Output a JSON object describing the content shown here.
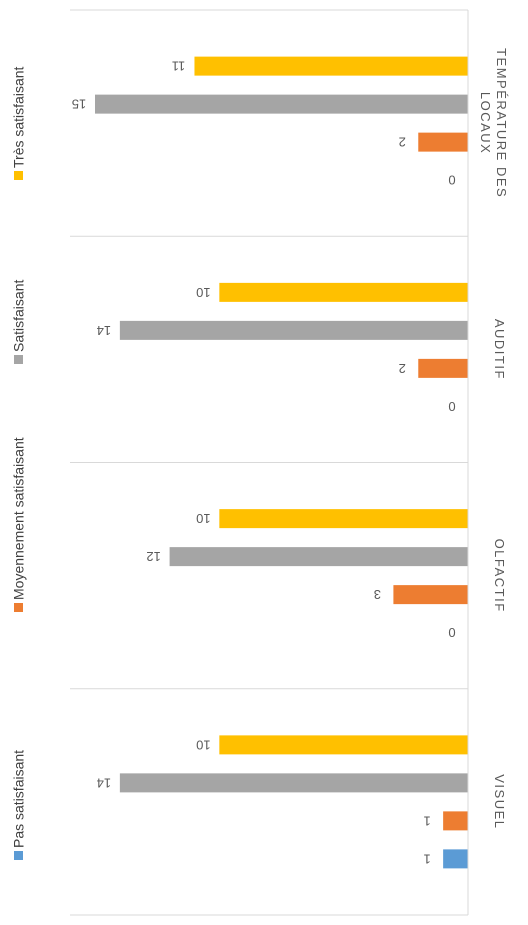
{
  "chart_data": {
    "type": "bar",
    "orientation": "horizontal",
    "rotated": "90deg-clockwise",
    "categories": [
      "VISUEL",
      "OLFACTIF",
      "AUDITIF",
      "TEMPÉRATURE DES LOCAUX"
    ],
    "series": [
      {
        "name": "Pas satisfaisant",
        "color": "#5B9BD5",
        "values": [
          1,
          0,
          0,
          0
        ]
      },
      {
        "name": "Moyennement satisfaisant",
        "color": "#ED7D31",
        "values": [
          1,
          3,
          2,
          2
        ]
      },
      {
        "name": "Satisfaisant",
        "color": "#A5A5A5",
        "values": [
          14,
          12,
          14,
          15
        ]
      },
      {
        "name": "Très satisfaisant",
        "color": "#FFC000",
        "values": [
          10,
          10,
          10,
          11
        ]
      }
    ],
    "xlim": [
      0,
      15
    ],
    "grid": false,
    "legend_position": "left"
  }
}
